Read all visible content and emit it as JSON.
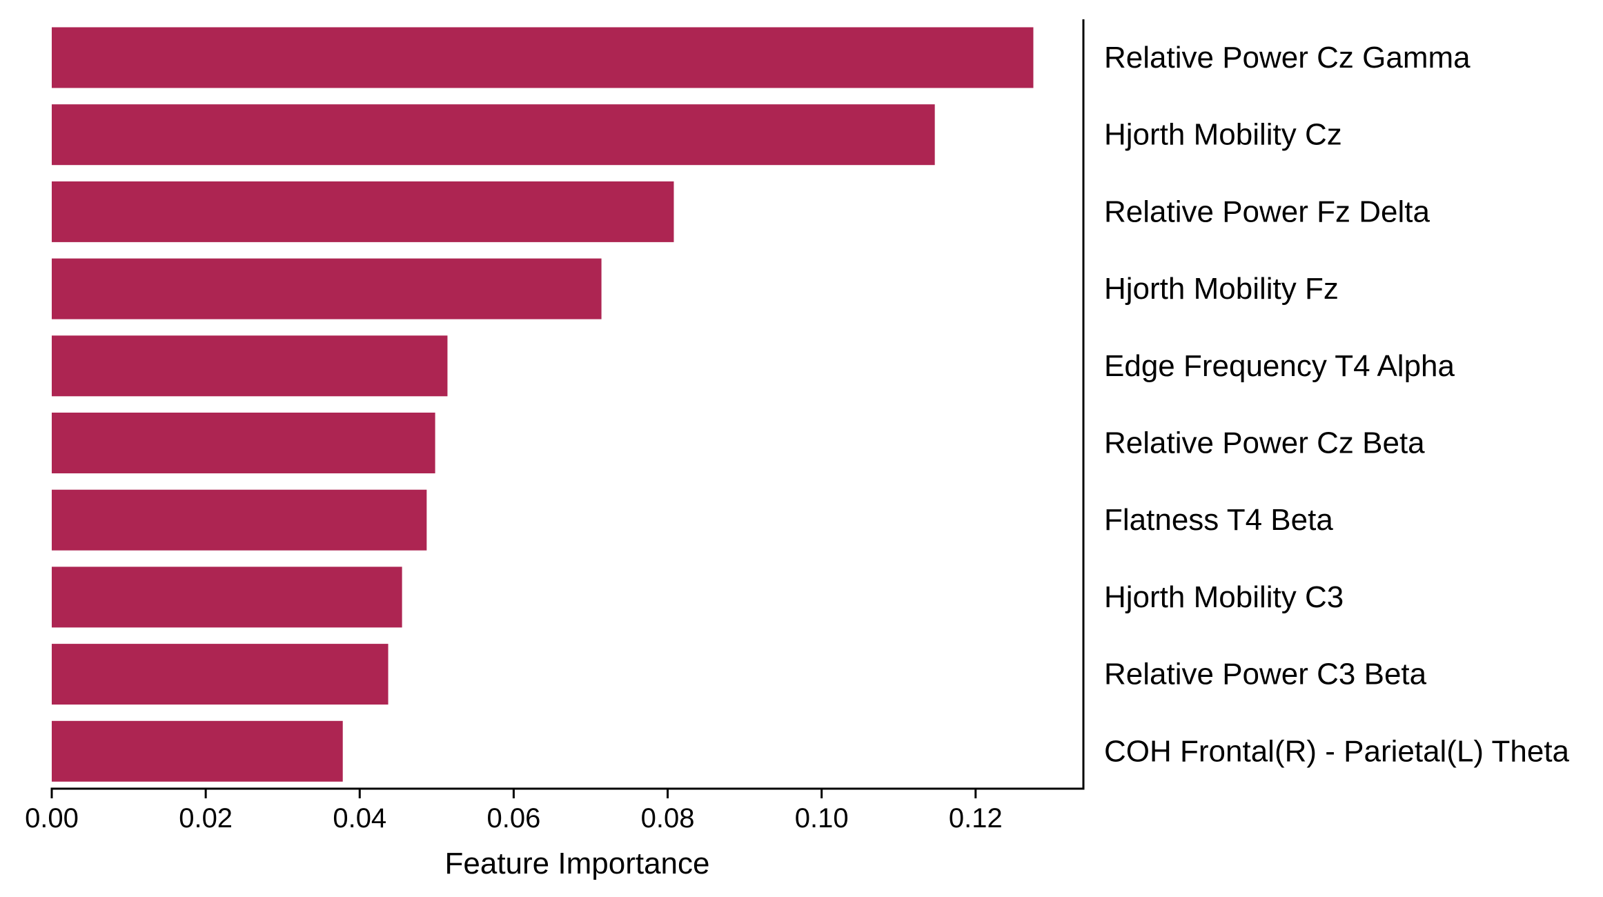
{
  "chart_data": {
    "type": "bar",
    "orientation": "horizontal",
    "title": "",
    "xlabel": "Feature Importance",
    "ylabel": "",
    "xlim": [
      0,
      0.134
    ],
    "x_ticks": [
      "0.00",
      "0.02",
      "0.04",
      "0.06",
      "0.08",
      "0.10",
      "0.12"
    ],
    "x_tick_values": [
      0.0,
      0.02,
      0.04,
      0.06,
      0.08,
      0.1,
      0.12
    ],
    "category_label_side": "right",
    "grid": false,
    "bar_color": "#ad2552",
    "categories": [
      "Relative Power Cz Gamma",
      "Hjorth Mobility Cz",
      "Relative Power Fz Delta",
      "Hjorth Mobility Fz",
      "Edge Frequency T4 Alpha",
      "Relative Power Cz Beta",
      "Flatness T4 Beta",
      "Hjorth Mobility C3",
      "Relative Power C3 Beta",
      "COH Frontal(R) - Parietal(L) Theta"
    ],
    "values": [
      0.1275,
      0.1147,
      0.0808,
      0.0714,
      0.0514,
      0.0498,
      0.0487,
      0.0455,
      0.0437,
      0.0378
    ]
  }
}
